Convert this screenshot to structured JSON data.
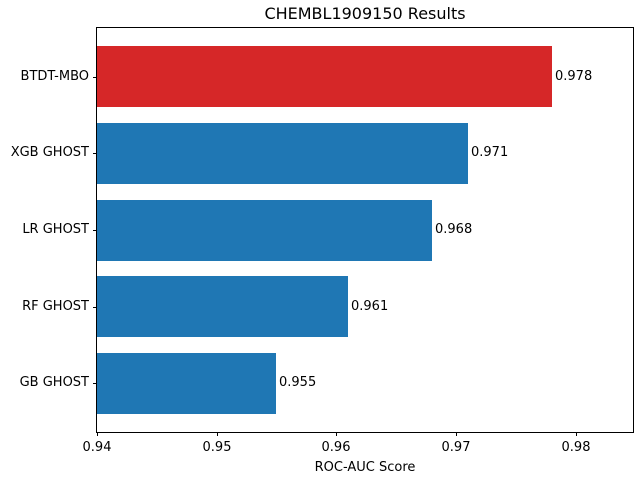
{
  "chart_data": {
    "type": "bar",
    "orientation": "horizontal",
    "title": "CHEMBL1909150 Results",
    "xlabel": "ROC-AUC Score",
    "ylabel": "",
    "categories": [
      "BTDT-MBO",
      "XGB GHOST",
      "LR GHOST",
      "RF GHOST",
      "GB GHOST"
    ],
    "values": [
      0.978,
      0.971,
      0.968,
      0.961,
      0.955
    ],
    "value_labels": [
      "0.978",
      "0.971",
      "0.968",
      "0.961",
      "0.955"
    ],
    "bar_colors": [
      "#d62728",
      "#1f77b4",
      "#1f77b4",
      "#1f77b4",
      "#1f77b4"
    ],
    "highlight_color": "#d62728",
    "default_bar_color": "#1f77b4",
    "xlim": [
      0.94,
      0.9848
    ],
    "xtick_values": [
      0.94,
      0.95,
      0.96,
      0.97,
      0.98
    ],
    "xtick_labels": [
      "0.94",
      "0.95",
      "0.96",
      "0.97",
      "0.98"
    ],
    "bar_height_fraction": 0.8,
    "grid": false,
    "legend": null,
    "background_color": "#ffffff",
    "text_color": "#000000"
  }
}
